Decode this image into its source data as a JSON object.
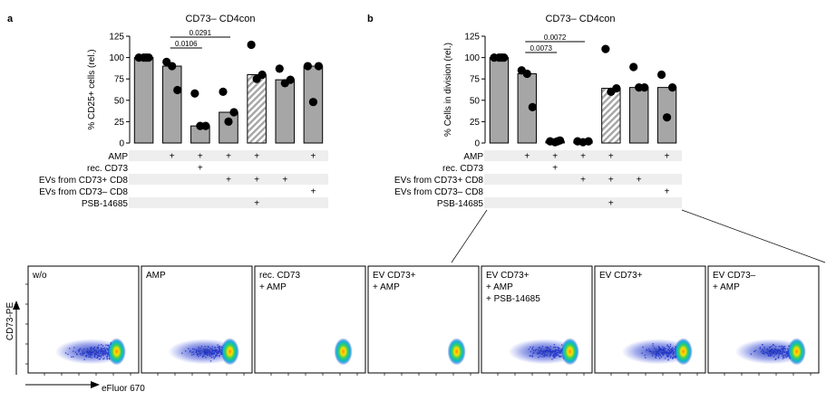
{
  "panels": [
    {
      "letter": "a",
      "title": "CD73– CD4con",
      "chart_data": {
        "type": "bar",
        "ylabel": "% CD25+ cells (rel.)",
        "ylim": [
          0,
          125
        ],
        "yticks": [
          0,
          25,
          50,
          75,
          100,
          125
        ],
        "bars": [
          {
            "value": 100,
            "hatched": false,
            "points": [
              100,
              100,
              100,
              100
            ]
          },
          {
            "value": 90,
            "hatched": false,
            "points": [
              95,
              90,
              62
            ]
          },
          {
            "value": 20,
            "hatched": false,
            "points": [
              58,
              20,
              20
            ]
          },
          {
            "value": 36,
            "hatched": false,
            "points": [
              60,
              25,
              36
            ]
          },
          {
            "value": 80,
            "hatched": true,
            "points": [
              115,
              75,
              80
            ]
          },
          {
            "value": 74,
            "hatched": false,
            "points": [
              87,
              70,
              74
            ]
          },
          {
            "value": 90,
            "hatched": false,
            "points": [
              90,
              48,
              90
            ]
          }
        ],
        "annotations": [
          {
            "label": "0.0291",
            "from": 1,
            "to": 3
          },
          {
            "label": "0.0106",
            "from": 1,
            "to": 2
          }
        ]
      }
    },
    {
      "letter": "b",
      "title": "CD73– CD4con",
      "chart_data": {
        "type": "bar",
        "ylabel": "% Cells in division (rel.)",
        "ylim": [
          0,
          125
        ],
        "yticks": [
          0,
          25,
          50,
          75,
          100,
          125
        ],
        "bars": [
          {
            "value": 100,
            "hatched": false,
            "points": [
              100,
              100,
              100,
              100
            ]
          },
          {
            "value": 81,
            "hatched": false,
            "points": [
              85,
              81,
              42
            ]
          },
          {
            "value": 2,
            "hatched": false,
            "points": [
              2,
              1,
              3,
              2
            ]
          },
          {
            "value": 2,
            "hatched": false,
            "points": [
              2,
              1,
              2
            ]
          },
          {
            "value": 64,
            "hatched": true,
            "points": [
              110,
              60,
              64
            ]
          },
          {
            "value": 65,
            "hatched": false,
            "points": [
              89,
              65,
              65
            ]
          },
          {
            "value": 65,
            "hatched": false,
            "points": [
              80,
              30,
              65
            ]
          }
        ],
        "annotations": [
          {
            "label": "0.0072",
            "from": 1,
            "to": 3
          },
          {
            "label": "0.0073",
            "from": 1,
            "to": 2
          }
        ]
      }
    }
  ],
  "condition_table": {
    "rows": [
      {
        "label": "AMP",
        "marks": [
          "",
          "+",
          "+",
          "+",
          "+",
          "",
          "+"
        ]
      },
      {
        "label": "rec. CD73",
        "marks": [
          "",
          "",
          "+",
          "",
          "",
          "",
          ""
        ]
      },
      {
        "label": "EVs from CD73+ CD8",
        "marks": [
          "",
          "",
          "",
          "+",
          "+",
          "+",
          ""
        ]
      },
      {
        "label": "EVs from CD73– CD8",
        "marks": [
          "",
          "",
          "",
          "",
          "",
          "",
          "+"
        ]
      },
      {
        "label": "PSB-14685",
        "marks": [
          "",
          "",
          "",
          "",
          "+",
          "",
          ""
        ]
      }
    ]
  },
  "flow": {
    "y_axis_label": "CD73-PE",
    "x_axis_label": "eFluor 670",
    "panels": [
      {
        "lines": [
          "w/o"
        ],
        "type": "wide"
      },
      {
        "lines": [
          "AMP"
        ],
        "type": "wide"
      },
      {
        "lines": [
          "rec. CD73",
          "+ AMP"
        ],
        "type": "narrow"
      },
      {
        "lines": [
          "EV CD73+",
          "+ AMP"
        ],
        "type": "narrow"
      },
      {
        "lines": [
          "EV CD73+",
          "+ AMP",
          "+ PSB-14685"
        ],
        "type": "wide"
      },
      {
        "lines": [
          "EV CD73+"
        ],
        "type": "wide"
      },
      {
        "lines": [
          "EV CD73–",
          "+ AMP"
        ],
        "type": "wide"
      }
    ]
  },
  "colors": {
    "bar": "#a6a6a6",
    "dot": "#000000",
    "row_stripe": "#eeeeee"
  }
}
